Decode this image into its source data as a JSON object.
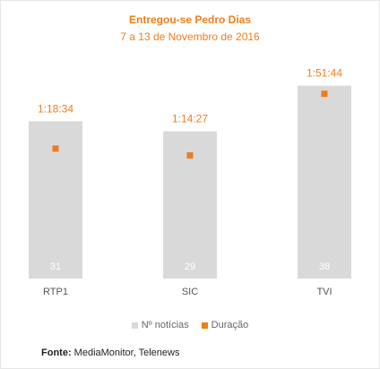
{
  "chart_data": {
    "type": "bar",
    "title": "Entregou-se Pedro Dias",
    "subtitle": "7 a 13 de Novembro de 2016",
    "categories": [
      "RTP1",
      "SIC",
      "TVI"
    ],
    "series": [
      {
        "name": "Nº notícias",
        "kind": "bar",
        "values": [
          31,
          29,
          38
        ],
        "labels": [
          "31",
          "29",
          "38"
        ]
      },
      {
        "name": "Duração",
        "kind": "point",
        "values": [
          "1:18:34",
          "1:14:27",
          "1:51:44"
        ],
        "seconds": [
          4714,
          4467,
          6704
        ]
      }
    ],
    "ylim_bars": [
      0,
      45
    ],
    "ylim_duration_seconds": [
      0,
      7800
    ],
    "grid": false,
    "legend_position": "bottom-center"
  },
  "colors": {
    "bar": "#d9d9d9",
    "point": "#f07d1a",
    "bar_label": "#ffffff",
    "axis_label": "#555555"
  },
  "footer": {
    "label": "Fonte:",
    "text": " MediaMonitor, Telenews"
  }
}
